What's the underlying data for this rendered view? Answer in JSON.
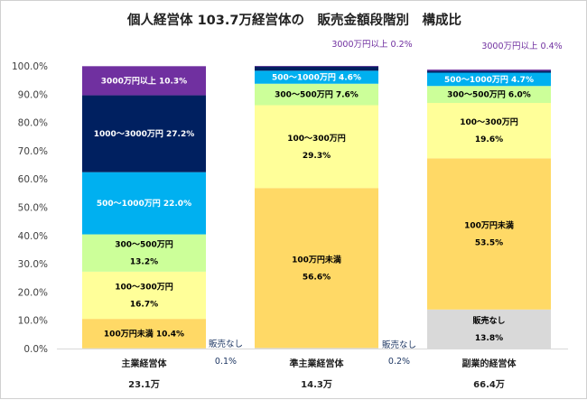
{
  "chart_data": {
    "type": "bar",
    "stacked": true,
    "percent": true,
    "title": "個人経営体 103.7万経営体の　販売金額段階別　構成比",
    "xlabel": "",
    "ylabel": "",
    "ylim": [
      0,
      100
    ],
    "y_ticks": [
      "0.0%",
      "10.0%",
      "20.0%",
      "30.0%",
      "40.0%",
      "50.0%",
      "60.0%",
      "70.0%",
      "80.0%",
      "90.0%",
      "100.0%"
    ],
    "grid": false,
    "legend": "none",
    "categories": [
      {
        "name": "主業経営体",
        "count": "23.1万"
      },
      {
        "name": "準主業経営体",
        "count": "14.3万"
      },
      {
        "name": "副業的経営体",
        "count": "66.4万"
      }
    ],
    "series": [
      {
        "name": "販売なし",
        "color": "#d9d9d9",
        "values": [
          0.1,
          0.2,
          13.8
        ]
      },
      {
        "name": "100万円未満",
        "color": "#ffd966",
        "values": [
          10.4,
          56.6,
          53.5
        ]
      },
      {
        "name": "100～300万円",
        "color": "#ffff99",
        "values": [
          16.7,
          29.3,
          19.6
        ]
      },
      {
        "name": "300～500万円",
        "color": "#ccff99",
        "values": [
          13.2,
          7.6,
          6.0
        ]
      },
      {
        "name": "500～1000万円",
        "color": "#00b0f0",
        "values": [
          22.0,
          4.6,
          4.7
        ]
      },
      {
        "name": "1000～3000万円",
        "color": "#002060",
        "values": [
          27.2,
          1.5,
          0.7
        ]
      },
      {
        "name": "3000万円以上",
        "color": "#7030a0",
        "values": [
          10.3,
          0.2,
          0.4
        ]
      }
    ],
    "annotations": [
      {
        "text": "販売なし",
        "value": "0.1%",
        "color": "#1f3864"
      },
      {
        "text": "3000万円以上 0.2%",
        "color": "#7030a0"
      },
      {
        "text": "販売なし",
        "value": "0.2%",
        "color": "#1f3864"
      },
      {
        "text": "3000万円以上 0.4%",
        "color": "#7030a0"
      }
    ],
    "segment_labels": [
      [
        {
          "series": 1,
          "lines": [
            "100万円未満 10.4%"
          ],
          "color": "#000000"
        },
        {
          "series": 2,
          "lines": [
            "100～300万円",
            "16.7%"
          ],
          "color": "#000000"
        },
        {
          "series": 3,
          "lines": [
            "300～500万円",
            "13.2%"
          ],
          "color": "#000000"
        },
        {
          "series": 4,
          "lines": [
            "500～1000万円 22.0%"
          ],
          "color": "#ffffff"
        },
        {
          "series": 5,
          "lines": [
            "1000～3000万円 27.2%"
          ],
          "color": "#ffffff"
        },
        {
          "series": 6,
          "lines": [
            "3000万円以上 10.3%"
          ],
          "color": "#ffffff"
        }
      ],
      [
        {
          "series": 1,
          "lines": [
            "100万円未満",
            "56.6%"
          ],
          "color": "#000000"
        },
        {
          "series": 2,
          "lines": [
            "100～300万円",
            "29.3%"
          ],
          "color": "#000000"
        },
        {
          "series": 3,
          "lines": [
            "300～500万円 7.6%"
          ],
          "color": "#000000"
        },
        {
          "series": 4,
          "lines": [
            "500～1000万円 4.6%"
          ],
          "color": "#ffffff"
        }
      ],
      [
        {
          "series": 0,
          "lines": [
            "販売なし",
            "13.8%"
          ],
          "color": "#000000"
        },
        {
          "series": 1,
          "lines": [
            "100万円未満",
            "53.5%"
          ],
          "color": "#000000"
        },
        {
          "series": 2,
          "lines": [
            "100～300万円",
            "19.6%"
          ],
          "color": "#000000"
        },
        {
          "series": 3,
          "lines": [
            "300～500万円 6.0%"
          ],
          "color": "#000000"
        },
        {
          "series": 4,
          "lines": [
            "500～1000万円 4.7%"
          ],
          "color": "#ffffff"
        }
      ]
    ]
  }
}
